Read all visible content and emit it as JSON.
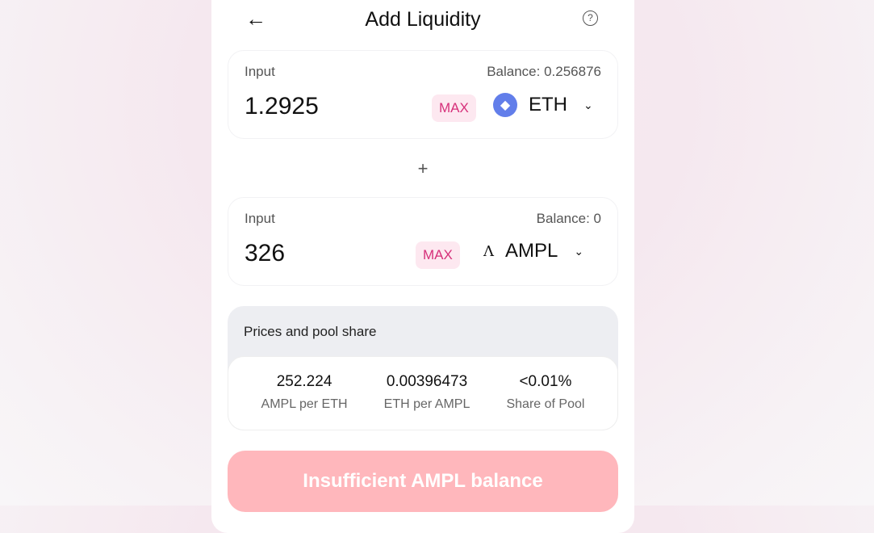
{
  "header": {
    "title": "Add Liquidity",
    "back_icon": "arrow-left-icon",
    "help_icon": "question-circle-icon",
    "help_glyph": "?"
  },
  "input_a": {
    "label": "Input",
    "balance": "Balance: 0.256876",
    "value": "1.2925",
    "max": "MAX",
    "token": "ETH"
  },
  "plus": "+",
  "input_b": {
    "label": "Input",
    "balance": "Balance: 0",
    "value": "326",
    "max": "MAX",
    "token": "AMPL",
    "token_glyph": "Λ"
  },
  "prices": {
    "title": "Prices and pool share",
    "items": [
      {
        "value": "252.224",
        "label": "AMPL per ETH"
      },
      {
        "value": "0.00396473",
        "label": "ETH per AMPL"
      },
      {
        "value": "<0.01%",
        "label": "Share of Pool"
      }
    ]
  },
  "submit": "Insufficient AMPL balance",
  "colors": {
    "accent": "#d6307a",
    "button": "#ffb7bc",
    "eth": "#627eea"
  }
}
